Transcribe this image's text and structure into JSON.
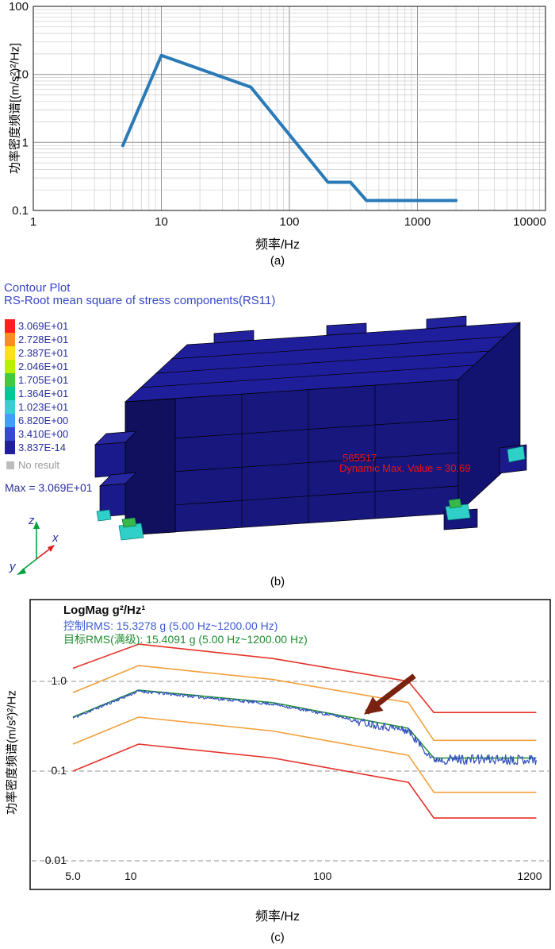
{
  "figure": {
    "panel_a": {
      "caption": "(a)",
      "xlabel": "频率/Hz",
      "ylabel": "功率密度频谱[(m/s²)²/Hz]"
    },
    "panel_b": {
      "caption": "(b)",
      "title_line1": "Contour Plot",
      "title_line2": "RS-Root mean square of stress components(RS11)",
      "legend": {
        "values": [
          "3.069E+01",
          "2.728E+01",
          "2.387E+01",
          "2.046E+01",
          "1.705E+01",
          "1.364E+01",
          "1.023E+01",
          "6.820E+00",
          "3.410E+00",
          "3.837E-14"
        ],
        "colors": [
          "#ff1f1f",
          "#ff8c1f",
          "#ffe01f",
          "#b8f000",
          "#3ecc3e",
          "#00c896",
          "#35cfd4",
          "#3f9fff",
          "#3548d8",
          "#1f1fa0"
        ],
        "no_result_label": "No result"
      },
      "max_label": "Max = 3.069E+01",
      "hotspot_node": "565517",
      "hotspot_label": "Dynamic Max. Value = 30.69",
      "triad": {
        "z": "z",
        "x": "x",
        "y": "y"
      }
    },
    "panel_c": {
      "caption": "(c)",
      "title": "LogMag g²/Hz¹",
      "control_rms": "控制RMS: 15.3278 g (5.00 Hz~1200.00 Hz)",
      "target_rms": "目标RMS(满级): 15.4091 g (5.00 Hz~1200.00 Hz)",
      "xlabel": "频率/Hz",
      "ylabel": "功率密度频谱(m/s²)²/Hz"
    }
  },
  "chart_data": [
    {
      "id": "a",
      "type": "line",
      "title": "",
      "xlabel": "频率/Hz",
      "ylabel": "功率密度频谱[(m/s²)²/Hz]",
      "xscale": "log",
      "yscale": "log",
      "xlim": [
        1,
        10000
      ],
      "ylim": [
        0.1,
        100
      ],
      "x_ticks": [
        1,
        10,
        100,
        1000,
        10000
      ],
      "x_tick_labels": [
        "1",
        "10",
        "100",
        "1000",
        "10000"
      ],
      "y_ticks": [
        100,
        10,
        1,
        0.1
      ],
      "y_tick_labels": [
        "100",
        "10",
        "1",
        "0.1"
      ],
      "grid": true,
      "series": [
        {
          "name": "psd-profile",
          "color": "#2a7ab8",
          "width": 4,
          "x": [
            5,
            10,
            50,
            200,
            300,
            400,
            2000
          ],
          "y": [
            0.9,
            19,
            6.5,
            0.26,
            0.26,
            0.14,
            0.14
          ]
        }
      ]
    },
    {
      "id": "b",
      "type": "heatmap",
      "subtype": "fea-contour",
      "title": "RS-Root mean square of stress components(RS11)",
      "legend_levels": [
        30.69,
        27.28,
        23.87,
        20.46,
        17.05,
        13.64,
        10.23,
        6.82,
        3.41,
        3.837e-14
      ],
      "max_value": 30.69,
      "max_node": "565517",
      "dynamic_max_value": 30.69
    },
    {
      "id": "c",
      "type": "line",
      "title": "LogMag g²/Hz¹",
      "annotations": [
        "控制RMS: 15.3278 g (5.00 Hz~1200.00 Hz)",
        "目标RMS(满级): 15.4091 g (5.00 Hz~1200.00 Hz)"
      ],
      "xlabel": "频率/Hz",
      "ylabel": "功率密度频谱(m/s²)²/Hz",
      "xscale": "log",
      "yscale": "log",
      "xlim": [
        5,
        1300
      ],
      "ylim": [
        0.008,
        3.8
      ],
      "x_ticks": [
        5,
        10,
        100,
        1200
      ],
      "x_tick_labels": [
        "5.0",
        "10",
        "100",
        "1200"
      ],
      "y_ticks": [
        1.0,
        0.1,
        0.01
      ],
      "y_tick_labels": [
        "1.0",
        "0.1",
        "0.01"
      ],
      "grid": "dashed-horizontal",
      "series": [
        {
          "name": "abort-upper",
          "color": "#e53228",
          "width": 1.6,
          "x": [
            5,
            11,
            55,
            280,
            380,
            1300
          ],
          "y": [
            1.4,
            2.6,
            1.8,
            1.0,
            0.45,
            0.45
          ]
        },
        {
          "name": "alarm-upper",
          "color": "#f2a03c",
          "width": 1.6,
          "x": [
            5,
            11,
            55,
            280,
            380,
            1300
          ],
          "y": [
            0.75,
            1.5,
            1.05,
            0.58,
            0.22,
            0.22
          ]
        },
        {
          "name": "alarm-lower",
          "color": "#f2a03c",
          "width": 1.6,
          "x": [
            5,
            11,
            55,
            280,
            380,
            1300
          ],
          "y": [
            0.2,
            0.4,
            0.28,
            0.15,
            0.058,
            0.058
          ]
        },
        {
          "name": "abort-lower",
          "color": "#e53228",
          "width": 1.6,
          "x": [
            5,
            11,
            55,
            280,
            380,
            1300
          ],
          "y": [
            0.1,
            0.2,
            0.14,
            0.075,
            0.03,
            0.03
          ]
        },
        {
          "name": "target",
          "color": "#1f8f2f",
          "width": 1.5,
          "x": [
            5,
            11,
            55,
            280,
            380,
            1300
          ],
          "y": [
            0.4,
            0.8,
            0.58,
            0.3,
            0.14,
            0.14
          ]
        },
        {
          "name": "control",
          "color": "#3050c0",
          "width": 1.2,
          "noisy": true,
          "x": [
            5,
            11,
            55,
            280,
            380,
            1300
          ],
          "y": [
            0.39,
            0.78,
            0.56,
            0.29,
            0.136,
            0.136
          ]
        }
      ],
      "arrow": {
        "points_at_hz": 170,
        "target_value": 0.4,
        "color": "#7a2210"
      }
    }
  ]
}
